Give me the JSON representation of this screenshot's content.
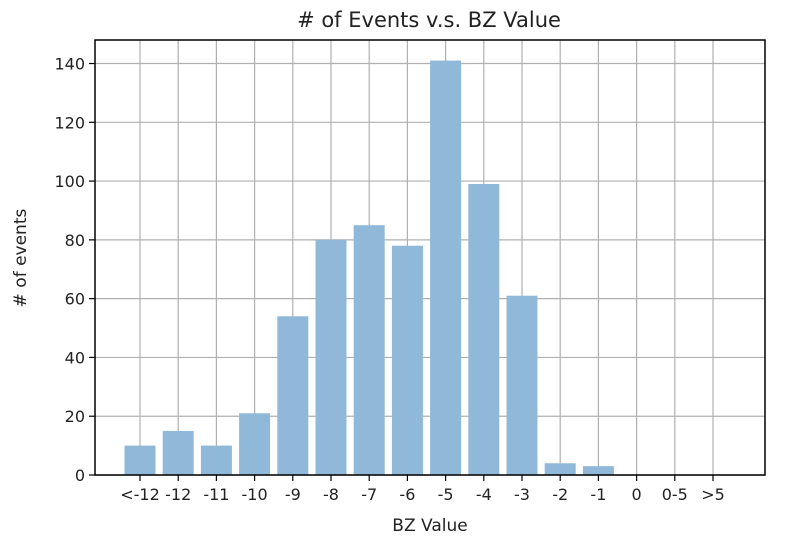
{
  "chart_data": {
    "type": "bar",
    "title": "# of Events v.s. BZ Value",
    "xlabel": "BZ Value",
    "ylabel": "# of events",
    "categories": [
      "<-12",
      "-12",
      "-11",
      "-10",
      "-9",
      "-8",
      "-7",
      "-6",
      "-5",
      "-4",
      "-3",
      "-2",
      "-1",
      "0",
      "0-5",
      ">5"
    ],
    "values": [
      10,
      15,
      10,
      21,
      54,
      80,
      85,
      78,
      141,
      99,
      61,
      4,
      3,
      0,
      0,
      0
    ],
    "ylim": [
      0,
      148
    ],
    "yticks": [
      0,
      20,
      40,
      60,
      80,
      100,
      120,
      140
    ],
    "grid": true,
    "bar_color": "#8fb8d9",
    "grid_color": "#b0b0b0"
  }
}
